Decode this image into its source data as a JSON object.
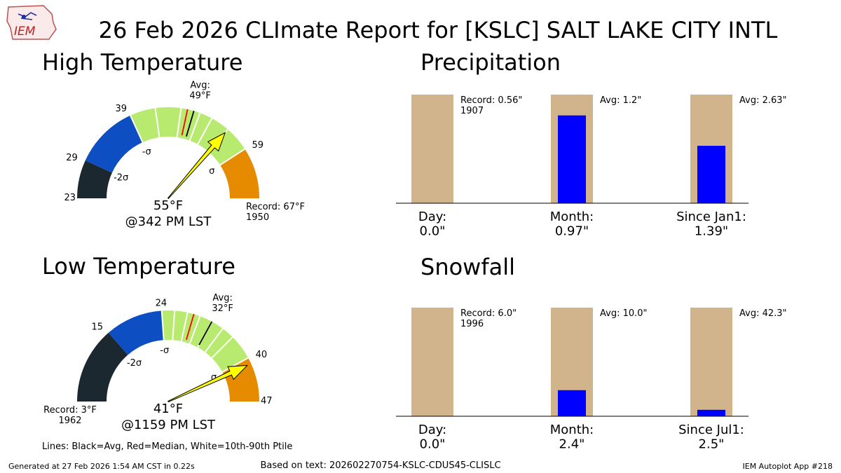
{
  "title": "26 Feb 2026 CLImate Report for [KSLC] SALT LAKE CITY INTL",
  "logo_text": "IEM",
  "legend_lines": "Lines: Black=Avg, Red=Median, White=10th-90th Ptile",
  "footer": {
    "generated": "Generated at 27 Feb 2026 1:54 AM CST in 0.22s",
    "based_on": "Based on text: 202602270754-KSLC-CDUS45-CLISLC",
    "app": "IEM Autoplot App #218"
  },
  "colors": {
    "record_low": "#1c2830",
    "minus2sigma": "#0d4ec2",
    "minus1sigma": "#1a5fd6",
    "normal": "#b7ea6e",
    "plus1sigma": "#e68a00",
    "needle": "#ffff00",
    "median_line": "#ff0000",
    "avg_line": "#000000",
    "bar_bg": "#d2b48c",
    "bar_fg": "#0000ff"
  },
  "chart_data": [
    {
      "type": "gauge",
      "title": "High Temperature",
      "min": 23,
      "max": 67,
      "bands": [
        23,
        29,
        39,
        59,
        67
      ],
      "ptile_lines": [
        39,
        43,
        47,
        50,
        52,
        55,
        59
      ],
      "avg": 49,
      "median": 48,
      "value": 55,
      "value_label": "55°F",
      "time_label": "@342 PM LST",
      "avg_label": "Avg:\n49°F",
      "record_label": "Record: 67°F\n1950",
      "tick_labels": [
        "23",
        "29",
        "39",
        "59"
      ],
      "sigma_labels": [
        "-2σ",
        "-σ",
        "σ"
      ]
    },
    {
      "type": "gauge",
      "title": "Low Temperature",
      "min": 3,
      "max": 47,
      "bands": [
        3,
        15,
        24,
        40,
        47
      ],
      "ptile_lines": [
        24,
        26,
        28,
        30,
        32,
        34,
        36,
        40
      ],
      "avg": 32,
      "median": 29,
      "value": 41,
      "value_label": "41°F",
      "time_label": "@1159 PM LST",
      "avg_label": "Avg:\n32°F",
      "record_label": "Record: 3°F\n1962",
      "tick_labels": [
        "15",
        "24",
        "40",
        "47"
      ],
      "sigma_labels": [
        "-2σ",
        "-σ",
        "σ"
      ]
    },
    {
      "type": "bar",
      "title": "Precipitation",
      "categories": [
        "Day:\n0.0\"",
        "Month:\n0.97\"",
        "Since Jan1:\n1.39\""
      ],
      "values": [
        0.0,
        0.97,
        1.39
      ],
      "reference": [
        0.56,
        1.2,
        2.63
      ],
      "reference_labels": [
        "Record: 0.56\"\n1907",
        "Avg: 1.2\"",
        "Avg: 2.63\""
      ]
    },
    {
      "type": "bar",
      "title": "Snowfall",
      "categories": [
        "Day:\n0.0\"",
        "Month:\n2.4\"",
        "Since Jul1:\n2.5\""
      ],
      "values": [
        0.0,
        2.4,
        2.5
      ],
      "reference": [
        6.0,
        10.0,
        42.3
      ],
      "reference_labels": [
        "Record: 6.0\"\n1996",
        "Avg: 10.0\"",
        "Avg: 42.3\""
      ]
    }
  ]
}
